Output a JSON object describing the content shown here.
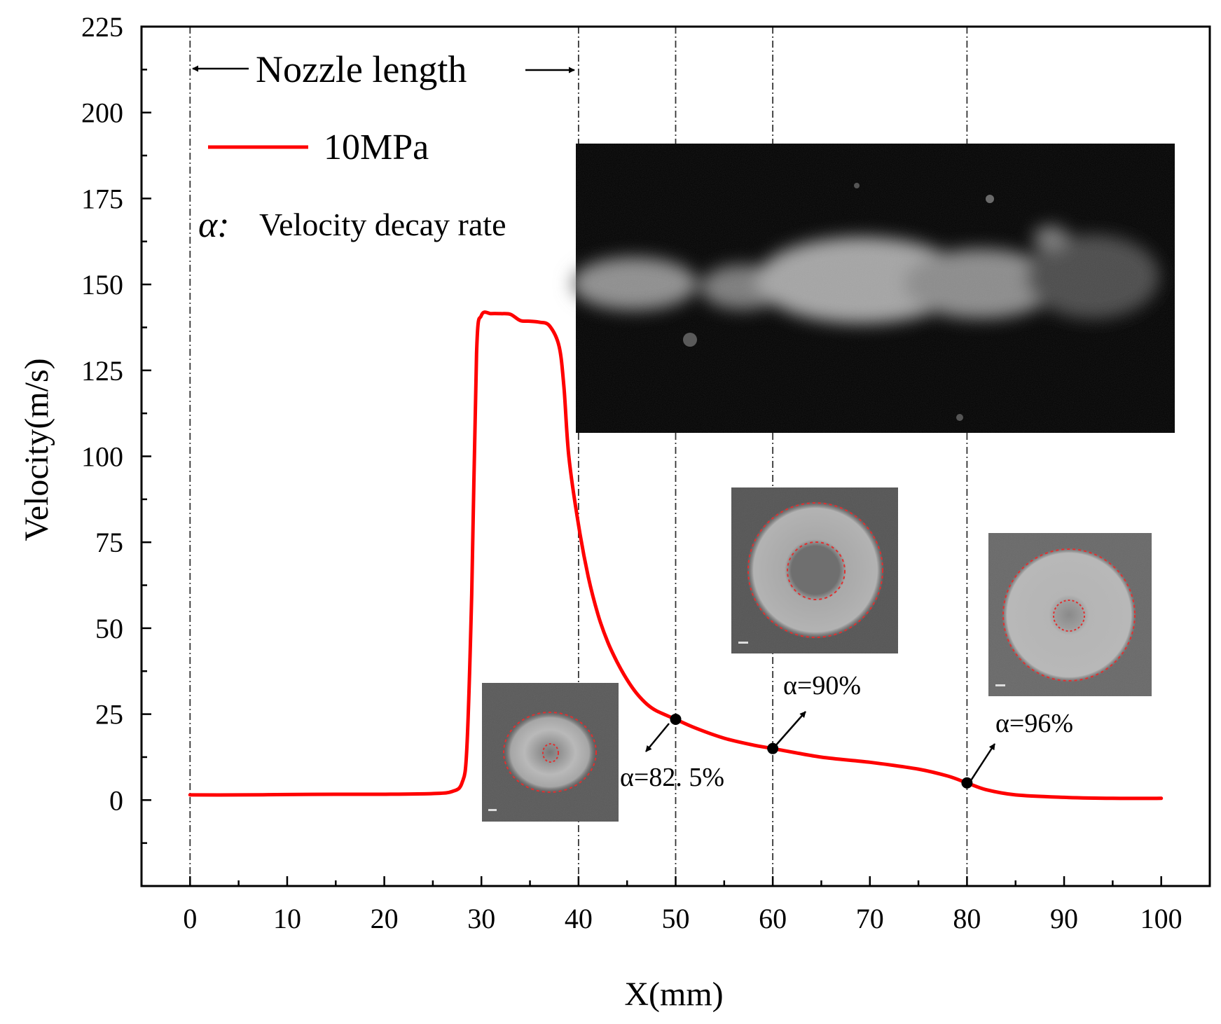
{
  "chart_data": {
    "type": "line",
    "title": "",
    "xlabel": "X(mm)",
    "ylabel": "Velocity(m/s)",
    "xlim": [
      -5,
      105
    ],
    "ylim": [
      -25,
      225
    ],
    "x_ticks": [
      0,
      10,
      20,
      30,
      40,
      50,
      60,
      70,
      80,
      90,
      100
    ],
    "y_ticks": [
      0,
      25,
      50,
      75,
      100,
      125,
      150,
      175,
      200,
      225
    ],
    "grid": false,
    "reference_lines_x": [
      0,
      40,
      50,
      60,
      80
    ],
    "legend": {
      "position": "top-left",
      "entries": [
        "10MPa"
      ]
    },
    "series": [
      {
        "name": "10MPa",
        "color": "#ff0000",
        "x": [
          0,
          5,
          10,
          15,
          20,
          25,
          27,
          28,
          28.5,
          29,
          29.5,
          30,
          31,
          32,
          33,
          34,
          35,
          36,
          37,
          38,
          38.5,
          39,
          40,
          41,
          42,
          43,
          44,
          45,
          46,
          47,
          48,
          50,
          52,
          55,
          58,
          60,
          65,
          70,
          75,
          78,
          80,
          82,
          85,
          90,
          95,
          100
        ],
        "values": [
          1.5,
          1.5,
          1.6,
          1.7,
          1.7,
          1.9,
          2.5,
          5,
          15,
          60,
          130,
          141,
          141.5,
          141.5,
          141.3,
          139.5,
          139.3,
          139,
          138,
          132,
          120,
          100,
          80,
          65,
          54,
          46,
          40,
          35,
          31,
          28,
          26,
          23.5,
          21,
          18,
          16,
          15,
          12.5,
          11,
          9,
          7,
          5,
          3,
          1.5,
          0.8,
          0.5,
          0.5
        ]
      }
    ],
    "markers": [
      {
        "x": 50,
        "y": 23.5
      },
      {
        "x": 60,
        "y": 15
      },
      {
        "x": 80,
        "y": 5
      }
    ],
    "annotations": [
      {
        "text": "Nozzle length"
      },
      {
        "text": "α: Velocity decay rate"
      },
      {
        "text": "α=82. 5%"
      },
      {
        "text": "α=90%"
      },
      {
        "text": "α=96%"
      }
    ]
  },
  "legend": {
    "label": "10MPa"
  },
  "nozzle_label": "Nozzle length",
  "decay": {
    "symbol": "α:",
    "label": "Velocity decay rate"
  },
  "alpha_labels": {
    "a1": "α=82. 5%",
    "a2": "α=90%",
    "a3": "α=96%"
  }
}
